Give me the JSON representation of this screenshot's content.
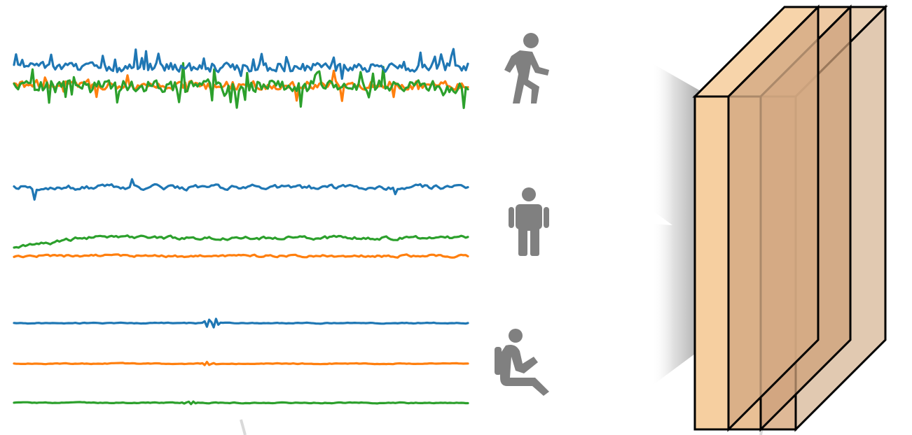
{
  "colors": {
    "x_axis": "#1f77b4",
    "y_axis": "#ff7f0e",
    "z_axis": "#2ca02c",
    "icon": "#808080",
    "layer_front": "#f6cfa0",
    "layer_mid": "#e6b98a",
    "layer_back": "#d7a883",
    "layer_outline": "#000000"
  },
  "activities": [
    {
      "name": "walking",
      "icon": "walking-person-icon"
    },
    {
      "name": "standing",
      "icon": "standing-person-icon"
    },
    {
      "name": "sitting",
      "icon": "sitting-person-icon"
    }
  ],
  "network": {
    "layers": 3,
    "shape": "stacked-3d-feature-blocks"
  }
}
